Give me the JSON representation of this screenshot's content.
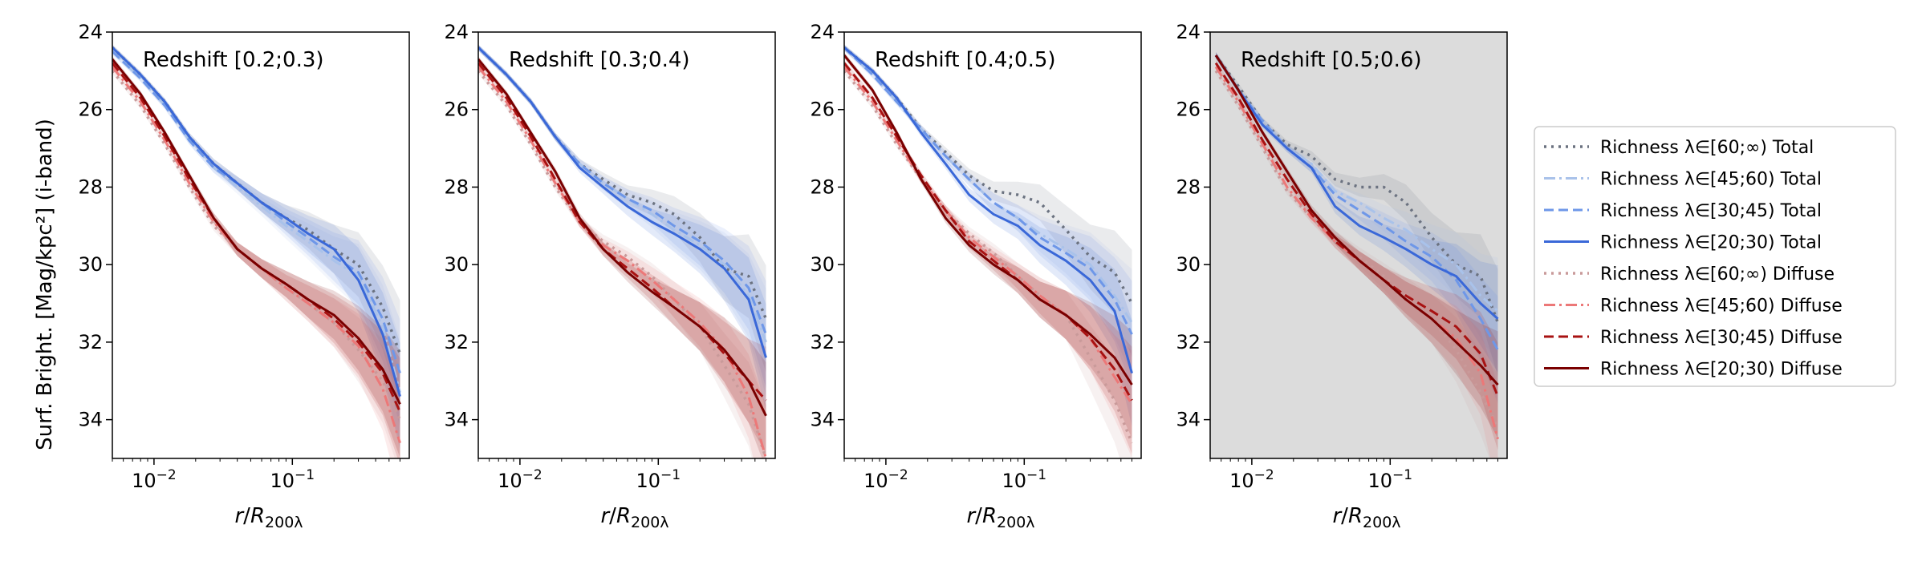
{
  "figure": {
    "ylabel": "Surf. Bright. [Mag/kpc²] (i-band)",
    "xlabel": "r/R200λ"
  },
  "legend": {
    "items": [
      {
        "label": "Richness λ∈[60;∞) Total",
        "color": "#6b7280",
        "style": "dotted"
      },
      {
        "label": "Richness λ∈[45;60) Total",
        "color": "#a9c2ea",
        "style": "dashdot"
      },
      {
        "label": "Richness λ∈[30;45) Total",
        "color": "#6e97e8",
        "style": "dashed"
      },
      {
        "label": "Richness λ∈[20;30) Total",
        "color": "#3a68d8",
        "style": "solid"
      },
      {
        "label": "Richness λ∈[60;∞) Diffuse",
        "color": "#c99a9a",
        "style": "dotted"
      },
      {
        "label": "Richness λ∈[45;60) Diffuse",
        "color": "#ec7878",
        "style": "dashdot"
      },
      {
        "label": "Richness λ∈[30;45) Diffuse",
        "color": "#a81212",
        "style": "dashed"
      },
      {
        "label": "Richness λ∈[20;30) Diffuse",
        "color": "#7a0000",
        "style": "solid"
      }
    ]
  },
  "chart_data": [
    {
      "type": "line",
      "title": "Redshift [0.2;0.3)",
      "xlabel": "r/R200λ",
      "ylabel": "Surf. Bright. [Mag/kpc²] (i-band)",
      "xscale": "log",
      "xlim": [
        0.005,
        0.7
      ],
      "ylim": [
        35,
        24
      ],
      "yticks": [
        24,
        26,
        28,
        30,
        32,
        34
      ],
      "xticks": [
        {
          "value": 0.01,
          "base": "10",
          "exp": "−2"
        },
        {
          "value": 0.1,
          "base": "10",
          "exp": "−1"
        }
      ],
      "x": [
        0.005,
        0.008,
        0.012,
        0.018,
        0.027,
        0.04,
        0.06,
        0.09,
        0.13,
        0.2,
        0.3,
        0.45,
        0.6
      ],
      "series": [
        {
          "name": "Richness λ∈[60;∞) Total",
          "values": [
            24.4,
            25.1,
            25.8,
            26.7,
            27.4,
            27.9,
            28.4,
            28.8,
            29.1,
            29.6,
            30.0,
            31.1,
            32.3
          ]
        },
        {
          "name": "Richness λ∈[45;60) Total",
          "values": [
            24.5,
            25.2,
            25.9,
            26.8,
            27.5,
            28.0,
            28.5,
            29.0,
            29.4,
            29.9,
            30.3,
            31.6,
            33.3
          ]
        },
        {
          "name": "Richness λ∈[30;45) Total",
          "values": [
            24.5,
            25.2,
            25.9,
            26.8,
            27.5,
            27.9,
            28.4,
            28.9,
            29.3,
            29.8,
            30.2,
            31.4,
            32.8
          ]
        },
        {
          "name": "Richness λ∈[20;30) Total",
          "values": [
            24.4,
            25.1,
            25.8,
            26.7,
            27.4,
            27.9,
            28.4,
            28.8,
            29.2,
            29.6,
            30.4,
            31.8,
            33.4
          ]
        },
        {
          "name": "Richness λ∈[60;∞) Diffuse",
          "values": [
            25.0,
            25.9,
            26.9,
            28.0,
            29.0,
            29.6,
            30.1,
            30.6,
            31.0,
            31.5,
            32.2,
            33.0,
            34.0
          ]
        },
        {
          "name": "Richness λ∈[45;60) Diffuse",
          "values": [
            24.9,
            25.8,
            26.8,
            27.9,
            28.9,
            29.6,
            30.1,
            30.6,
            31.0,
            31.5,
            32.1,
            33.2,
            34.6
          ]
        },
        {
          "name": "Richness λ∈[30;45) Diffuse",
          "values": [
            24.8,
            25.7,
            26.7,
            27.8,
            28.8,
            29.6,
            30.1,
            30.5,
            30.9,
            31.4,
            32.0,
            32.8,
            33.8
          ]
        },
        {
          "name": "Richness λ∈[20;30) Diffuse",
          "values": [
            24.7,
            25.6,
            26.6,
            27.7,
            28.8,
            29.6,
            30.1,
            30.5,
            30.9,
            31.3,
            31.9,
            32.7,
            33.6
          ]
        }
      ]
    },
    {
      "type": "line",
      "title": "Redshift [0.3;0.4)",
      "xlabel": "r/R200λ",
      "ylabel": "",
      "xscale": "log",
      "xlim": [
        0.005,
        0.7
      ],
      "ylim": [
        35,
        24
      ],
      "yticks": [
        24,
        26,
        28,
        30,
        32,
        34
      ],
      "xticks": [
        {
          "value": 0.01,
          "base": "10",
          "exp": "−2"
        },
        {
          "value": 0.1,
          "base": "10",
          "exp": "−1"
        }
      ],
      "x": [
        0.005,
        0.008,
        0.012,
        0.018,
        0.027,
        0.04,
        0.06,
        0.09,
        0.13,
        0.2,
        0.3,
        0.45,
        0.6
      ],
      "series": [
        {
          "name": "Richness λ∈[60;∞) Total",
          "values": [
            24.4,
            25.1,
            25.8,
            26.7,
            27.4,
            27.8,
            28.2,
            28.4,
            28.7,
            29.3,
            30.1,
            30.3,
            31.4
          ]
        },
        {
          "name": "Richness λ∈[45;60) Total",
          "values": [
            24.4,
            25.1,
            25.8,
            26.7,
            27.4,
            27.9,
            28.3,
            28.7,
            29.1,
            29.5,
            30.0,
            30.8,
            32.0
          ]
        },
        {
          "name": "Richness λ∈[30;45) Total",
          "values": [
            24.4,
            25.1,
            25.8,
            26.7,
            27.4,
            27.9,
            28.3,
            28.6,
            29.0,
            29.4,
            29.9,
            30.6,
            31.8
          ]
        },
        {
          "name": "Richness λ∈[20;30) Total",
          "values": [
            24.4,
            25.1,
            25.8,
            26.7,
            27.5,
            28.0,
            28.5,
            28.9,
            29.2,
            29.6,
            30.1,
            30.9,
            32.4
          ]
        },
        {
          "name": "Richness λ∈[60;∞) Diffuse",
          "values": [
            25.0,
            25.9,
            26.9,
            28.0,
            28.9,
            29.4,
            29.8,
            30.3,
            30.9,
            31.6,
            32.6,
            33.6,
            35.0
          ]
        },
        {
          "name": "Richness λ∈[45;60) Diffuse",
          "values": [
            24.9,
            25.8,
            26.8,
            27.9,
            28.9,
            29.5,
            29.9,
            30.4,
            30.9,
            31.5,
            32.2,
            33.4,
            35.0
          ]
        },
        {
          "name": "Richness λ∈[30;45) Diffuse",
          "values": [
            24.8,
            25.7,
            26.7,
            27.8,
            28.9,
            29.6,
            30.1,
            30.6,
            31.1,
            31.6,
            32.3,
            33.0,
            33.5
          ]
        },
        {
          "name": "Richness λ∈[20;30) Diffuse",
          "values": [
            24.7,
            25.6,
            26.6,
            27.6,
            28.8,
            29.6,
            30.2,
            30.7,
            31.1,
            31.6,
            32.2,
            33.0,
            33.9
          ]
        }
      ]
    },
    {
      "type": "line",
      "title": "Redshift [0.4;0.5)",
      "xlabel": "r/R200λ",
      "ylabel": "",
      "xscale": "log",
      "xlim": [
        0.005,
        0.7
      ],
      "ylim": [
        35,
        24
      ],
      "yticks": [
        24,
        26,
        28,
        30,
        32,
        34
      ],
      "xticks": [
        {
          "value": 0.01,
          "base": "10",
          "exp": "−2"
        },
        {
          "value": 0.1,
          "base": "10",
          "exp": "−1"
        }
      ],
      "x": [
        0.005,
        0.008,
        0.012,
        0.018,
        0.027,
        0.04,
        0.06,
        0.09,
        0.13,
        0.2,
        0.3,
        0.45,
        0.6
      ],
      "series": [
        {
          "name": "Richness λ∈[60;∞) Total",
          "values": [
            24.4,
            25.0,
            25.7,
            26.5,
            27.1,
            27.7,
            28.1,
            28.2,
            28.4,
            29.1,
            29.8,
            30.2,
            31.0
          ]
        },
        {
          "name": "Richness λ∈[45;60) Total",
          "values": [
            24.4,
            25.1,
            25.8,
            26.5,
            27.2,
            27.8,
            28.4,
            28.8,
            29.2,
            29.6,
            30.0,
            30.8,
            31.5
          ]
        },
        {
          "name": "Richness λ∈[30;45) Total",
          "values": [
            24.4,
            25.1,
            25.8,
            26.5,
            27.2,
            27.8,
            28.4,
            28.8,
            29.3,
            29.7,
            30.1,
            30.9,
            31.8
          ]
        },
        {
          "name": "Richness λ∈[20;30) Total",
          "values": [
            24.4,
            25.0,
            25.7,
            26.6,
            27.4,
            28.2,
            28.7,
            29.0,
            29.5,
            29.9,
            30.4,
            31.2,
            32.8
          ]
        },
        {
          "name": "Richness λ∈[60;∞) Diffuse",
          "values": [
            25.0,
            25.9,
            26.9,
            27.8,
            28.6,
            29.2,
            29.7,
            30.3,
            30.8,
            31.3,
            32.4,
            33.5,
            34.6
          ]
        },
        {
          "name": "Richness λ∈[45;60) Diffuse",
          "values": [
            24.9,
            25.8,
            26.8,
            27.8,
            28.6,
            29.3,
            29.8,
            30.3,
            30.8,
            31.3,
            31.9,
            32.9,
            33.6
          ]
        },
        {
          "name": "Richness λ∈[30;45) Diffuse",
          "values": [
            24.8,
            25.7,
            26.7,
            27.7,
            28.6,
            29.4,
            29.9,
            30.4,
            30.9,
            31.3,
            31.9,
            32.7,
            33.5
          ]
        },
        {
          "name": "Richness λ∈[20;30) Diffuse",
          "values": [
            24.6,
            25.5,
            26.6,
            27.8,
            28.8,
            29.5,
            30.0,
            30.4,
            30.9,
            31.3,
            31.8,
            32.4,
            33.1
          ]
        }
      ]
    },
    {
      "type": "line",
      "title": "Redshift [0.5;0.6)",
      "xlabel": "r/R200λ",
      "ylabel": "",
      "xscale": "log",
      "xlim": [
        0.005,
        0.7
      ],
      "ylim": [
        35,
        24
      ],
      "yticks": [
        24,
        26,
        28,
        30,
        32,
        34
      ],
      "xticks": [
        {
          "value": 0.01,
          "base": "10",
          "exp": "−2"
        },
        {
          "value": 0.1,
          "base": "10",
          "exp": "−1"
        }
      ],
      "background": "#dcdcdc",
      "x": [
        0.0055,
        0.008,
        0.012,
        0.018,
        0.027,
        0.04,
        0.06,
        0.09,
        0.13,
        0.2,
        0.3,
        0.45,
        0.6
      ],
      "series": [
        {
          "name": "Richness λ∈[60;∞) Total",
          "values": [
            24.6,
            25.4,
            26.3,
            26.9,
            27.2,
            27.8,
            28.0,
            28.0,
            28.4,
            29.3,
            30.0,
            30.3,
            31.5
          ]
        },
        {
          "name": "Richness λ∈[45;60) Total",
          "values": [
            24.6,
            25.5,
            26.3,
            27.0,
            27.4,
            28.1,
            28.4,
            28.8,
            29.1,
            29.6,
            30.0,
            30.8,
            31.2
          ]
        },
        {
          "name": "Richness λ∈[30;45) Total",
          "values": [
            24.6,
            25.5,
            26.3,
            27.0,
            27.5,
            28.2,
            28.6,
            29.0,
            29.4,
            29.8,
            30.4,
            31.4,
            32.2
          ]
        },
        {
          "name": "Richness λ∈[20;30) Total",
          "values": [
            24.6,
            25.5,
            26.4,
            27.0,
            27.5,
            28.5,
            29.0,
            29.3,
            29.6,
            30.0,
            30.3,
            31.0,
            31.4
          ]
        },
        {
          "name": "Richness λ∈[60;∞) Diffuse",
          "values": [
            25.0,
            25.9,
            27.0,
            28.1,
            28.8,
            29.3,
            29.8,
            30.3,
            30.8,
            31.4,
            32.2,
            33.3,
            34.2
          ]
        },
        {
          "name": "Richness λ∈[45;60) Diffuse",
          "values": [
            24.9,
            25.8,
            26.9,
            28.0,
            28.8,
            29.4,
            29.9,
            30.4,
            30.9,
            31.4,
            31.9,
            32.8,
            34.5
          ]
        },
        {
          "name": "Richness λ∈[30;45) Diffuse",
          "values": [
            24.8,
            25.7,
            26.8,
            27.8,
            28.7,
            29.4,
            29.9,
            30.4,
            30.8,
            31.2,
            31.6,
            32.3,
            33.4
          ]
        },
        {
          "name": "Richness λ∈[20;30) Diffuse",
          "values": [
            24.6,
            25.5,
            26.6,
            27.6,
            28.6,
            29.3,
            29.9,
            30.4,
            30.9,
            31.4,
            32.0,
            32.6,
            33.1
          ]
        }
      ]
    }
  ]
}
